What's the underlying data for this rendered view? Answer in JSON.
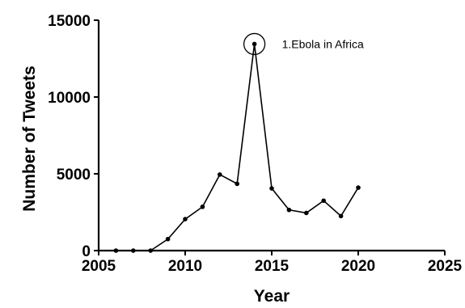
{
  "chart_data": {
    "type": "line",
    "xlabel": "Year",
    "ylabel": "Number of Tweets",
    "xlim": [
      2005,
      2025
    ],
    "ylim": [
      0,
      15000
    ],
    "x_ticks": [
      2005,
      2010,
      2015,
      2020,
      2025
    ],
    "y_ticks": [
      0,
      5000,
      10000,
      15000
    ],
    "grid": false,
    "series": [
      {
        "x": [
          2006,
          2007,
          2008,
          2009,
          2010,
          2011,
          2012,
          2013,
          2014,
          2015,
          2016,
          2017,
          2018,
          2019,
          2020
        ],
        "values": [
          0,
          0,
          0,
          750,
          2050,
          2850,
          4950,
          4350,
          13450,
          4050,
          2650,
          2450,
          3250,
          2250,
          4100
        ]
      }
    ],
    "annotations": [
      {
        "x": 2014,
        "y": 13450,
        "text": "1.Ebola in Africa"
      }
    ]
  }
}
